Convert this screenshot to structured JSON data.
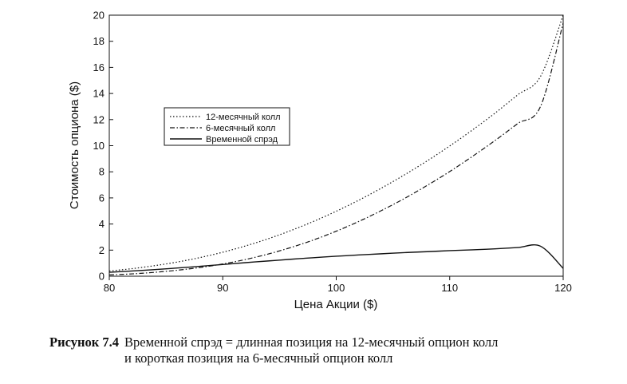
{
  "chart_data": {
    "type": "line",
    "title": "",
    "xlabel": "Цена Акции ($)",
    "ylabel": "Стоимость опциона ($)",
    "xlim": [
      80,
      120
    ],
    "ylim": [
      0,
      20
    ],
    "xticks": [
      80,
      90,
      100,
      110,
      120
    ],
    "yticks": [
      0,
      2,
      4,
      6,
      8,
      10,
      12,
      14,
      16,
      18,
      20
    ],
    "grid": false,
    "legend_position": "center-left",
    "x": [
      80,
      82,
      84,
      86,
      88,
      90,
      92,
      94,
      96,
      98,
      100,
      102,
      104,
      106,
      108,
      110,
      112,
      114,
      116,
      118,
      120
    ],
    "series": [
      {
        "name": "12-месячный колл",
        "style": "dotted",
        "values": [
          0.4,
          0.58,
          0.81,
          1.09,
          1.43,
          1.84,
          2.32,
          2.87,
          3.5,
          4.2,
          4.98,
          5.83,
          6.76,
          7.76,
          8.83,
          9.98,
          11.2,
          12.5,
          13.9,
          15.3,
          20.0
        ]
      },
      {
        "name": "6-месячный колл",
        "style": "dash-dot",
        "values": [
          0.1,
          0.18,
          0.3,
          0.46,
          0.67,
          0.94,
          1.28,
          1.7,
          2.2,
          2.78,
          3.45,
          4.2,
          5.04,
          5.95,
          6.95,
          8.02,
          9.18,
          10.4,
          11.7,
          13.0,
          19.4
        ]
      },
      {
        "name": "Временной спрэд",
        "style": "solid",
        "values": [
          0.3,
          0.4,
          0.51,
          0.63,
          0.76,
          0.9,
          1.04,
          1.17,
          1.3,
          1.42,
          1.53,
          1.63,
          1.72,
          1.81,
          1.88,
          1.96,
          2.02,
          2.1,
          2.2,
          2.3,
          0.6
        ]
      }
    ]
  },
  "caption": {
    "label": "Рисунок 7.4",
    "text_line1": "Временной спрэд = длинная позиция на 12-месячный опцион колл",
    "text_line2": "и короткая позиция на 6-месячный опцион колл"
  }
}
